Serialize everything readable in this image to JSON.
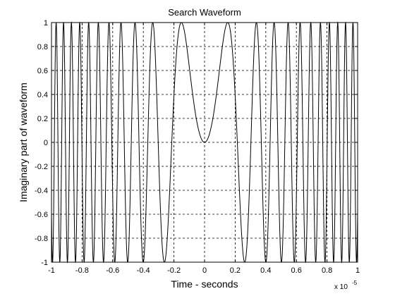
{
  "chart_data": {
    "type": "line",
    "title": "Search Waveform",
    "xlabel": "Time - seconds",
    "ylabel": "Imaginary part of waveform",
    "x_exponent_base": "x 10",
    "x_exponent_power": "-5",
    "xlim": [
      -1,
      1
    ],
    "ylim": [
      -1,
      1
    ],
    "xticks": [
      "-1",
      "-0.8",
      "-0.6",
      "-0.4",
      "-0.2",
      "0",
      "0.2",
      "0.4",
      "0.6",
      "0.8",
      "1"
    ],
    "yticks": [
      "-1",
      "-0.8",
      "-0.6",
      "-0.4",
      "-0.2",
      "0",
      "0.2",
      "0.4",
      "0.6",
      "0.8",
      "1"
    ],
    "grid": true,
    "series": [
      {
        "function": "sin(a * t^2), t in x-axis units, a = 68.5 (chirp symmetric about t = 0; value 0 at t = 0)",
        "chirp_rate": 68.5,
        "samples": 3000,
        "color": "#000000"
      }
    ]
  }
}
